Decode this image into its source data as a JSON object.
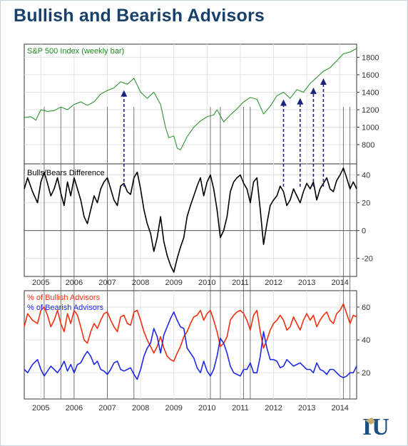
{
  "page": {
    "title": "Bullish and Bearish Advisors"
  },
  "colors": {
    "sp500": "#1e8c1e",
    "bulls_bears": "#000000",
    "bullish": "#f03010",
    "bearish": "#1e28e6",
    "arrows": "#1a237e",
    "title": "#17406b",
    "logo_primary": "#1d4f80",
    "logo_accent": "#c8aa6e"
  },
  "logo": {
    "name": "iu-logo",
    "letters": "IU"
  },
  "chart_data": [
    {
      "type": "line",
      "title": "S&P 500 Index (weekly bar)",
      "ylim": [
        580,
        1950
      ],
      "yticks": [
        800,
        1000,
        1200,
        1400,
        1600,
        1800
      ],
      "series": [
        {
          "x": [
            2004.5,
            2004.7,
            2004.85,
            2005.0,
            2005.2,
            2005.4,
            2005.6,
            2005.8,
            2006.0,
            2006.2,
            2006.4,
            2006.6,
            2006.8,
            2007.0,
            2007.2,
            2007.4,
            2007.6,
            2007.8,
            2008.0,
            2008.2,
            2008.4,
            2008.6,
            2008.75,
            2008.85,
            2009.0,
            2009.1,
            2009.2,
            2009.4,
            2009.6,
            2009.8,
            2010.0,
            2010.2,
            2010.3,
            2010.5,
            2010.7,
            2010.9,
            2011.1,
            2011.3,
            2011.5,
            2011.7,
            2011.9,
            2012.1,
            2012.3,
            2012.5,
            2012.7,
            2012.9,
            2013.1,
            2013.3,
            2013.5,
            2013.7,
            2013.9,
            2014.1,
            2014.3,
            2014.5
          ],
          "y": [
            1110,
            1120,
            1080,
            1200,
            1180,
            1190,
            1230,
            1200,
            1260,
            1290,
            1250,
            1290,
            1380,
            1420,
            1450,
            1520,
            1490,
            1560,
            1400,
            1330,
            1400,
            1260,
            1000,
            880,
            900,
            760,
            740,
            890,
            1000,
            1070,
            1120,
            1140,
            1200,
            1060,
            1140,
            1210,
            1290,
            1340,
            1320,
            1150,
            1240,
            1360,
            1400,
            1330,
            1430,
            1400,
            1500,
            1570,
            1640,
            1680,
            1760,
            1840,
            1860,
            1900
          ]
        }
      ],
      "arrows_at_x": [
        2007.5,
        2012.3,
        2012.8,
        2013.2,
        2013.5
      ]
    },
    {
      "type": "line",
      "title": "Bulls/Bears Difference",
      "ylim": [
        -33,
        48
      ],
      "yticks": [
        -20,
        0,
        20,
        40
      ],
      "series": [
        {
          "x": [
            2004.5,
            2004.6,
            2004.75,
            2004.9,
            2005.0,
            2005.1,
            2005.2,
            2005.3,
            2005.4,
            2005.5,
            2005.6,
            2005.7,
            2005.8,
            2005.9,
            2006.0,
            2006.1,
            2006.2,
            2006.3,
            2006.4,
            2006.5,
            2006.6,
            2006.7,
            2006.8,
            2006.9,
            2007.0,
            2007.1,
            2007.2,
            2007.3,
            2007.4,
            2007.5,
            2007.6,
            2007.7,
            2007.8,
            2007.9,
            2008.0,
            2008.1,
            2008.2,
            2008.3,
            2008.4,
            2008.5,
            2008.6,
            2008.7,
            2008.8,
            2008.9,
            2009.0,
            2009.1,
            2009.2,
            2009.3,
            2009.4,
            2009.5,
            2009.6,
            2009.7,
            2009.8,
            2009.9,
            2010.0,
            2010.1,
            2010.2,
            2010.3,
            2010.4,
            2010.5,
            2010.6,
            2010.7,
            2010.8,
            2010.9,
            2011.0,
            2011.1,
            2011.2,
            2011.3,
            2011.4,
            2011.5,
            2011.6,
            2011.7,
            2011.8,
            2011.9,
            2012.0,
            2012.1,
            2012.2,
            2012.3,
            2012.4,
            2012.5,
            2012.6,
            2012.7,
            2012.8,
            2012.9,
            2013.0,
            2013.1,
            2013.2,
            2013.3,
            2013.4,
            2013.5,
            2013.6,
            2013.7,
            2013.8,
            2013.9,
            2014.0,
            2014.1,
            2014.2,
            2014.3,
            2014.4,
            2014.5
          ],
          "y": [
            30,
            38,
            28,
            20,
            35,
            42,
            34,
            25,
            30,
            38,
            27,
            18,
            35,
            25,
            38,
            30,
            22,
            10,
            5,
            15,
            25,
            20,
            30,
            35,
            38,
            30,
            22,
            18,
            32,
            34,
            28,
            26,
            38,
            42,
            30,
            15,
            5,
            -2,
            -15,
            -5,
            10,
            -8,
            -18,
            -25,
            -30,
            -20,
            -12,
            -5,
            10,
            18,
            25,
            32,
            38,
            25,
            35,
            40,
            30,
            15,
            -5,
            0,
            10,
            28,
            35,
            38,
            40,
            34,
            30,
            20,
            35,
            38,
            15,
            -10,
            5,
            18,
            22,
            25,
            32,
            28,
            18,
            22,
            30,
            25,
            20,
            28,
            34,
            30,
            35,
            22,
            30,
            34,
            38,
            30,
            28,
            36,
            40,
            45,
            38,
            30,
            35,
            30
          ]
        }
      ]
    },
    {
      "type": "line",
      "ylim": [
        4,
        70
      ],
      "yticks": [
        20,
        40,
        60
      ],
      "series": [
        {
          "name": "% of Bullish Advisors",
          "x": [
            2004.5,
            2004.6,
            2004.75,
            2004.9,
            2005.0,
            2005.1,
            2005.2,
            2005.3,
            2005.4,
            2005.5,
            2005.6,
            2005.7,
            2005.8,
            2005.9,
            2006.0,
            2006.1,
            2006.2,
            2006.3,
            2006.4,
            2006.5,
            2006.6,
            2006.7,
            2006.8,
            2006.9,
            2007.0,
            2007.1,
            2007.2,
            2007.3,
            2007.4,
            2007.5,
            2007.6,
            2007.7,
            2007.8,
            2007.9,
            2008.0,
            2008.1,
            2008.2,
            2008.3,
            2008.4,
            2008.5,
            2008.6,
            2008.7,
            2008.8,
            2008.9,
            2009.0,
            2009.1,
            2009.2,
            2009.3,
            2009.4,
            2009.5,
            2009.6,
            2009.7,
            2009.8,
            2009.9,
            2010.0,
            2010.1,
            2010.2,
            2010.3,
            2010.4,
            2010.5,
            2010.6,
            2010.7,
            2010.8,
            2010.9,
            2011.0,
            2011.1,
            2011.2,
            2011.3,
            2011.4,
            2011.5,
            2011.6,
            2011.7,
            2011.8,
            2011.9,
            2012.0,
            2012.1,
            2012.2,
            2012.3,
            2012.4,
            2012.5,
            2012.6,
            2012.7,
            2012.8,
            2012.9,
            2013.0,
            2013.1,
            2013.2,
            2013.3,
            2013.4,
            2013.5,
            2013.6,
            2013.7,
            2013.8,
            2013.9,
            2014.0,
            2014.1,
            2014.2,
            2014.3,
            2014.4,
            2014.5
          ],
          "y": [
            48,
            56,
            52,
            50,
            58,
            60,
            55,
            48,
            52,
            58,
            50,
            45,
            56,
            50,
            58,
            55,
            48,
            40,
            38,
            45,
            50,
            47,
            52,
            56,
            57,
            52,
            48,
            45,
            54,
            55,
            50,
            49,
            57,
            58,
            52,
            45,
            40,
            36,
            32,
            36,
            42,
            35,
            30,
            28,
            27,
            32,
            36,
            42,
            45,
            50,
            54,
            55,
            58,
            52,
            56,
            58,
            52,
            45,
            36,
            38,
            42,
            52,
            55,
            57,
            58,
            56,
            52,
            46,
            55,
            58,
            45,
            35,
            40,
            46,
            50,
            52,
            55,
            52,
            46,
            48,
            54,
            50,
            46,
            52,
            56,
            52,
            55,
            48,
            52,
            55,
            57,
            52,
            50,
            56,
            58,
            62,
            56,
            50,
            55,
            54
          ]
        },
        {
          "name": "% of Bearish Advisors",
          "x": [
            2004.5,
            2004.6,
            2004.75,
            2004.9,
            2005.0,
            2005.1,
            2005.2,
            2005.3,
            2005.4,
            2005.5,
            2005.6,
            2005.7,
            2005.8,
            2005.9,
            2006.0,
            2006.1,
            2006.2,
            2006.3,
            2006.4,
            2006.5,
            2006.6,
            2006.7,
            2006.8,
            2006.9,
            2007.0,
            2007.1,
            2007.2,
            2007.3,
            2007.4,
            2007.5,
            2007.6,
            2007.7,
            2007.8,
            2007.9,
            2008.0,
            2008.1,
            2008.2,
            2008.3,
            2008.4,
            2008.5,
            2008.6,
            2008.7,
            2008.8,
            2008.9,
            2009.0,
            2009.1,
            2009.2,
            2009.3,
            2009.4,
            2009.5,
            2009.6,
            2009.7,
            2009.8,
            2009.9,
            2010.0,
            2010.1,
            2010.2,
            2010.3,
            2010.4,
            2010.5,
            2010.6,
            2010.7,
            2010.8,
            2010.9,
            2011.0,
            2011.1,
            2011.2,
            2011.3,
            2011.4,
            2011.5,
            2011.6,
            2011.7,
            2011.8,
            2011.9,
            2012.0,
            2012.1,
            2012.2,
            2012.3,
            2012.4,
            2012.5,
            2012.6,
            2012.7,
            2012.8,
            2012.9,
            2013.0,
            2013.1,
            2013.2,
            2013.3,
            2013.4,
            2013.5,
            2013.6,
            2013.7,
            2013.8,
            2013.9,
            2014.0,
            2014.1,
            2014.2,
            2014.3,
            2014.4,
            2014.5
          ],
          "y": [
            22,
            20,
            25,
            28,
            22,
            18,
            21,
            24,
            22,
            20,
            23,
            27,
            21,
            25,
            20,
            25,
            26,
            30,
            33,
            30,
            25,
            27,
            22,
            21,
            19,
            22,
            26,
            27,
            22,
            21,
            22,
            23,
            19,
            16,
            22,
            30,
            35,
            38,
            47,
            42,
            32,
            43,
            48,
            53,
            57,
            52,
            48,
            47,
            35,
            32,
            29,
            23,
            20,
            27,
            21,
            18,
            22,
            30,
            41,
            38,
            32,
            24,
            20,
            19,
            18,
            22,
            22,
            26,
            20,
            20,
            30,
            45,
            35,
            28,
            28,
            27,
            23,
            24,
            28,
            26,
            24,
            25,
            26,
            24,
            22,
            22,
            20,
            26,
            22,
            21,
            19,
            22,
            22,
            20,
            18,
            17,
            18,
            20,
            20,
            24
          ]
        }
      ]
    }
  ],
  "x_axis": {
    "tick_labels": [
      "2005",
      "2006",
      "2007",
      "2008",
      "2009",
      "2010",
      "2011",
      "2012",
      "2013",
      "2014"
    ]
  }
}
